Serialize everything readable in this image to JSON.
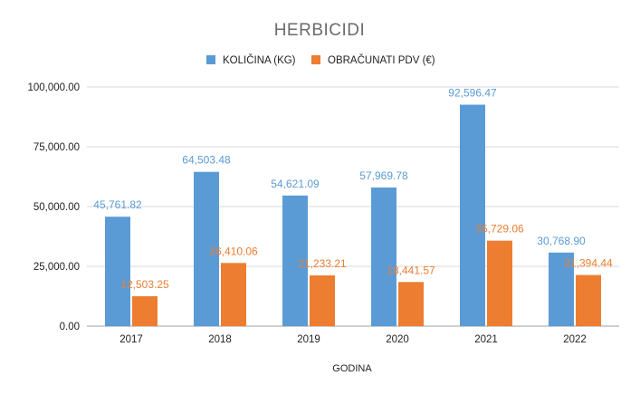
{
  "chart_data": {
    "type": "bar",
    "title": "HERBICIDI",
    "xlabel": "GODINA",
    "ylabel": "",
    "categories": [
      "2017",
      "2018",
      "2019",
      "2020",
      "2021",
      "2022"
    ],
    "series": [
      {
        "name": "KOLIČINA (KG)",
        "color": "#5b9bd5",
        "values": [
          45761.82,
          64503.48,
          54621.09,
          57969.78,
          92596.47,
          30768.9
        ],
        "labels": [
          "45,761.82",
          "64,503.48",
          "54,621.09",
          "57,969.78",
          "92,596.47",
          "30,768.90"
        ]
      },
      {
        "name": "OBRAČUNATI PDV (€)",
        "color": "#ed7d31",
        "values": [
          12503.25,
          26410.06,
          21233.21,
          18441.57,
          35729.06,
          21394.44
        ],
        "labels": [
          "12,503.25",
          "26,410.06",
          "21,233.21",
          "18,441.57",
          "35,729.06",
          "21,394.44"
        ]
      }
    ],
    "ylim": [
      0,
      100000
    ],
    "yticks": [
      0,
      25000,
      50000,
      75000,
      100000
    ],
    "ytick_labels": [
      "0.00",
      "25,000.00",
      "50,000.00",
      "75,000.00",
      "100,000.00"
    ],
    "grid": true,
    "legend_position": "top-center"
  }
}
